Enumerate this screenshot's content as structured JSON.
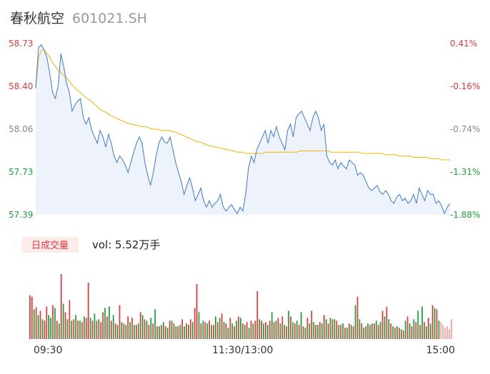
{
  "header": {
    "name": "春秋航空",
    "code": "601021.SH"
  },
  "colors": {
    "up": "#e4393c",
    "down": "#1aa23a",
    "flat": "#888888",
    "price_line": "#3b78d8",
    "avg_line": "#f0b400",
    "area_fill": "#eef3fb"
  },
  "volume_panel": {
    "label": "日成交量",
    "readout": "vol: 5.52万手"
  },
  "chart_data": {
    "type": "line",
    "price_axis": {
      "ticks": [
        "58.73",
        "58.40",
        "58.06",
        "57.73",
        "57.39"
      ],
      "range": [
        57.39,
        58.73
      ]
    },
    "pct_axis": {
      "ticks": [
        "0.41%",
        "-0.16%",
        "-0.74%",
        "-1.31%",
        "-1.88%"
      ]
    },
    "time_ticks": [
      "09:30",
      "11:30/13:00",
      "15:00"
    ],
    "price": [
      58.38,
      58.7,
      58.72,
      58.68,
      58.62,
      58.5,
      58.35,
      58.3,
      58.4,
      58.65,
      58.55,
      58.42,
      58.35,
      58.2,
      58.25,
      58.28,
      58.3,
      58.15,
      58.1,
      58.15,
      58.05,
      58.0,
      57.95,
      58.05,
      58.0,
      57.92,
      58.02,
      57.95,
      57.85,
      57.8,
      57.85,
      57.82,
      57.78,
      57.72,
      57.8,
      57.88,
      57.95,
      58.0,
      57.95,
      57.8,
      57.7,
      57.62,
      57.72,
      57.85,
      57.95,
      58.0,
      57.96,
      57.95,
      58.0,
      57.9,
      57.8,
      57.72,
      57.65,
      57.55,
      57.62,
      57.68,
      57.6,
      57.5,
      57.55,
      57.6,
      57.5,
      57.45,
      57.5,
      57.45,
      57.48,
      57.5,
      57.55,
      57.45,
      57.42,
      57.45,
      57.47,
      57.43,
      57.4,
      57.45,
      57.42,
      57.55,
      57.75,
      57.85,
      57.8,
      57.9,
      57.95,
      58.0,
      58.05,
      57.95,
      58.05,
      58.0,
      58.08,
      58.0,
      57.95,
      57.9,
      58.05,
      58.1,
      58.0,
      58.15,
      58.18,
      58.2,
      58.15,
      58.1,
      58.05,
      58.15,
      58.2,
      58.15,
      58.05,
      58.1,
      57.85,
      57.8,
      57.78,
      57.82,
      57.75,
      57.8,
      57.77,
      57.75,
      57.82,
      57.8,
      57.78,
      57.7,
      57.72,
      57.7,
      57.65,
      57.6,
      57.58,
      57.6,
      57.62,
      57.57,
      57.55,
      57.58,
      57.55,
      57.5,
      57.48,
      57.53,
      57.55,
      57.5,
      57.52,
      57.48,
      57.5,
      57.55,
      57.48,
      57.6,
      57.55,
      57.5,
      57.58,
      57.55,
      57.55,
      57.48,
      57.5,
      57.46,
      57.4,
      57.45,
      57.48
    ],
    "average": [
      58.38,
      58.62,
      58.68,
      58.68,
      58.65,
      58.62,
      58.58,
      58.55,
      58.52,
      58.5,
      58.48,
      58.46,
      58.43,
      58.4,
      58.38,
      58.36,
      58.34,
      58.32,
      58.3,
      58.29,
      58.27,
      58.25,
      58.23,
      58.21,
      58.2,
      58.19,
      58.17,
      58.16,
      58.15,
      58.14,
      58.13,
      58.12,
      58.11,
      58.1,
      58.1,
      58.09,
      58.09,
      58.08,
      58.08,
      58.08,
      58.07,
      58.06,
      58.06,
      58.06,
      58.05,
      58.05,
      58.05,
      58.05,
      58.04,
      58.04,
      58.03,
      58.02,
      58.01,
      58.0,
      57.99,
      57.98,
      57.97,
      57.96,
      57.96,
      57.95,
      57.94,
      57.93,
      57.93,
      57.92,
      57.92,
      57.91,
      57.91,
      57.9,
      57.9,
      57.89,
      57.89,
      57.88,
      57.88,
      57.88,
      57.87,
      57.87,
      57.87,
      57.87,
      57.87,
      57.87,
      57.87,
      57.88,
      57.88,
      57.88,
      57.88,
      57.88,
      57.88,
      57.88,
      57.88,
      57.88,
      57.88,
      57.88,
      57.88,
      57.89,
      57.89,
      57.89,
      57.89,
      57.89,
      57.89,
      57.89,
      57.89,
      57.89,
      57.89,
      57.89,
      57.88,
      57.88,
      57.88,
      57.88,
      57.88,
      57.88,
      57.88,
      57.88,
      57.88,
      57.88,
      57.88,
      57.87,
      57.87,
      57.87,
      57.87,
      57.87,
      57.87,
      57.87,
      57.87,
      57.86,
      57.86,
      57.86,
      57.86,
      57.86,
      57.85,
      57.85,
      57.85,
      57.85,
      57.85,
      57.84,
      57.84,
      57.84,
      57.84,
      57.84,
      57.84,
      57.83,
      57.83,
      57.83,
      57.83,
      57.82,
      57.82,
      57.82,
      57.82
    ],
    "volume": {
      "values": [
        62,
        60,
        42,
        45,
        34,
        40,
        28,
        26,
        46,
        34,
        30,
        48,
        44,
        26,
        22,
        92,
        50,
        38,
        28,
        55,
        26,
        28,
        34,
        26,
        26,
        24,
        32,
        30,
        80,
        30,
        26,
        36,
        26,
        28,
        24,
        38,
        44,
        32,
        46,
        26,
        34,
        22,
        20,
        48,
        24,
        22,
        20,
        32,
        24,
        30,
        20,
        20,
        22,
        38,
        34,
        28,
        26,
        20,
        30,
        22,
        42,
        18,
        18,
        20,
        24,
        18,
        16,
        26,
        26,
        22,
        18,
        18,
        20,
        28,
        18,
        22,
        20,
        28,
        24,
        44,
        78,
        38,
        22,
        26,
        24,
        22,
        26,
        20,
        20,
        32,
        24,
        30,
        36,
        24,
        22,
        16,
        30,
        22,
        18,
        26,
        32,
        30,
        22,
        20,
        24,
        16,
        26,
        22,
        26,
        68,
        28,
        26,
        22,
        24,
        20,
        26,
        38,
        24,
        26,
        30,
        22,
        32,
        20,
        18,
        40,
        32,
        24,
        22,
        26,
        20,
        38,
        18,
        16,
        30,
        22,
        40,
        24,
        20,
        20,
        24,
        22,
        34,
        28,
        22,
        30,
        28,
        28,
        26,
        20,
        20,
        22,
        16,
        16,
        22,
        20,
        18,
        48,
        60,
        28,
        22,
        16,
        18,
        22,
        20,
        22,
        22,
        26,
        20,
        24,
        40,
        32,
        46,
        28,
        22,
        18,
        16,
        18,
        16,
        14,
        12,
        26,
        32,
        22,
        18,
        28,
        24,
        40,
        20,
        46,
        24,
        18,
        30,
        22,
        48,
        44,
        42,
        26,
        24,
        20,
        16,
        18,
        14,
        28
      ],
      "colors": [
        "up",
        "up",
        "down",
        "up",
        "down",
        "up",
        "down",
        "up",
        "up",
        "down",
        "down",
        "up",
        "down",
        "up",
        "down",
        "up",
        "down",
        "up",
        "down",
        "up",
        "down",
        "up",
        "down",
        "up",
        "down",
        "up",
        "down",
        "up",
        "up",
        "down",
        "up",
        "down",
        "up",
        "down",
        "up",
        "up",
        "down",
        "up",
        "down",
        "up",
        "down",
        "up",
        "down",
        "up",
        "down",
        "up",
        "down",
        "up",
        "down",
        "up",
        "down",
        "up",
        "down",
        "up",
        "down",
        "up",
        "down",
        "up",
        "down",
        "up",
        "down",
        "up",
        "down",
        "up",
        "down",
        "up",
        "down",
        "up",
        "down",
        "up",
        "down",
        "up",
        "down",
        "up",
        "down",
        "up",
        "down",
        "up",
        "down",
        "up",
        "up",
        "down",
        "up",
        "down",
        "up",
        "down",
        "up",
        "down",
        "up",
        "down",
        "up",
        "down",
        "up",
        "down",
        "up",
        "down",
        "up",
        "down",
        "up",
        "down",
        "up",
        "down",
        "up",
        "down",
        "up",
        "down",
        "up",
        "down",
        "up",
        "up",
        "down",
        "up",
        "down",
        "up",
        "down",
        "up",
        "down",
        "up",
        "down",
        "up",
        "down",
        "up",
        "down",
        "up",
        "down",
        "up",
        "down",
        "up",
        "down",
        "up",
        "down",
        "up",
        "down",
        "up",
        "down",
        "up",
        "down",
        "up",
        "down",
        "up",
        "down",
        "up",
        "down",
        "up",
        "down",
        "up",
        "down",
        "up",
        "down",
        "up",
        "down",
        "up",
        "down",
        "up",
        "down",
        "up",
        "down",
        "up",
        "down",
        "up",
        "down",
        "up",
        "down",
        "up",
        "down",
        "up",
        "down",
        "up",
        "down",
        "up",
        "down",
        "up",
        "down",
        "up",
        "down",
        "up",
        "down",
        "up",
        "down",
        "up",
        "down",
        "up",
        "down",
        "up",
        "down",
        "up",
        "down",
        "up",
        "down",
        "up",
        "down",
        "up",
        "down",
        "up",
        "down",
        "up",
        "down",
        "flat"
      ]
    }
  }
}
